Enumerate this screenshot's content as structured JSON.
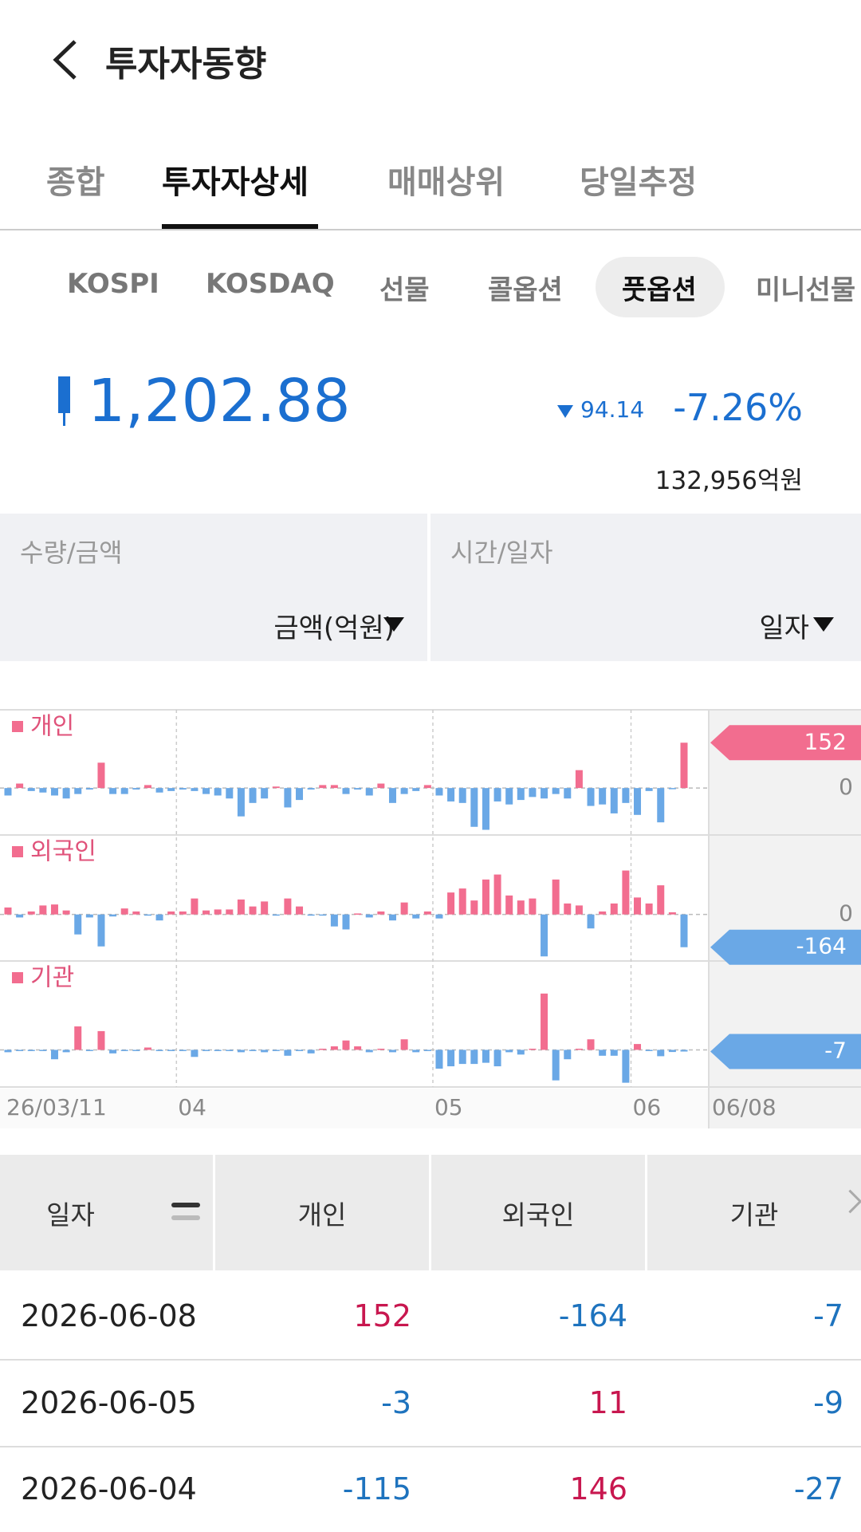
{
  "header": {
    "title": "투자자동향"
  },
  "tabs": [
    "종합",
    "투자자상세",
    "매매상위",
    "당일추정"
  ],
  "subtabs": [
    "KOSPI",
    "KOSDAQ",
    "선물",
    "콜옵션",
    "풋옵션",
    "미니선물"
  ],
  "quote": {
    "price": "1,202.88",
    "change": "94.14",
    "change_rate": "-7.26%",
    "amount": "132,956억원"
  },
  "filters": [
    {
      "label": "수량/금액",
      "value": "금액(억원)"
    },
    {
      "label": "시간/일자",
      "value": "일자"
    }
  ],
  "chart_data": {
    "type": "bar",
    "positive_color": "#f26d8f",
    "negative_color": "#6aa8e6",
    "categories": [
      "26/03/11",
      null,
      null,
      null,
      null,
      null,
      null,
      null,
      null,
      null,
      null,
      null,
      null,
      null,
      null,
      "04",
      null,
      null,
      null,
      null,
      null,
      null,
      null,
      null,
      null,
      null,
      null,
      null,
      null,
      null,
      null,
      null,
      null,
      null,
      null,
      null,
      null,
      "05",
      null,
      null,
      null,
      null,
      null,
      null,
      null,
      null,
      null,
      null,
      null,
      null,
      null,
      null,
      null,
      null,
      "06",
      null,
      null,
      null,
      "06/08"
    ],
    "series": [
      {
        "name": "개인",
        "ylim": [
          -152,
          257
        ],
        "yticks": [
          0
        ],
        "values": [
          -25,
          15,
          -10,
          -15,
          -25,
          -35,
          -20,
          -5,
          85,
          -20,
          -20,
          -5,
          10,
          -15,
          -10,
          -5,
          -10,
          -20,
          -25,
          -35,
          -95,
          -50,
          -35,
          5,
          -65,
          -40,
          -5,
          10,
          10,
          -20,
          -5,
          -25,
          15,
          -50,
          -20,
          -10,
          10,
          -25,
          -45,
          -50,
          -130,
          -140,
          -45,
          -55,
          -40,
          -30,
          -35,
          -20,
          -35,
          60,
          -60,
          -55,
          -85,
          -50,
          -90,
          -10,
          -115,
          -3,
          152
        ]
      },
      {
        "name": "외국인",
        "ylim": [
          -221,
          390
        ],
        "yticks": [
          0
        ],
        "values": [
          35,
          -15,
          15,
          45,
          50,
          20,
          -100,
          -15,
          -160,
          -10,
          30,
          15,
          -5,
          -30,
          15,
          15,
          80,
          20,
          25,
          25,
          75,
          40,
          65,
          -5,
          80,
          40,
          -5,
          -5,
          -60,
          -75,
          5,
          -15,
          15,
          -30,
          60,
          -20,
          15,
          -20,
          110,
          130,
          70,
          175,
          200,
          95,
          70,
          80,
          -210,
          175,
          55,
          45,
          -70,
          15,
          55,
          220,
          85,
          55,
          146,
          11,
          -164
        ]
      },
      {
        "name": "기관",
        "ylim": [
          -148,
          372
        ],
        "values": [
          -10,
          -5,
          -5,
          -5,
          -40,
          -10,
          100,
          -5,
          80,
          -15,
          -5,
          -5,
          10,
          -5,
          -5,
          -5,
          -30,
          -5,
          -5,
          -5,
          -10,
          -5,
          -10,
          -5,
          -25,
          -5,
          -15,
          5,
          15,
          40,
          15,
          -10,
          5,
          -10,
          45,
          -10,
          -5,
          -80,
          -70,
          -60,
          -60,
          -55,
          -70,
          -10,
          -20,
          5,
          240,
          -130,
          -40,
          5,
          45,
          -25,
          -25,
          -140,
          25,
          -5,
          -27,
          -9,
          -7
        ]
      }
    ]
  },
  "table": {
    "columns": [
      "일자",
      "개인",
      "외국인",
      "기관"
    ],
    "rows": [
      [
        "2026-06-08",
        152,
        -164,
        -7
      ],
      [
        "2026-06-05",
        -3,
        11,
        -9
      ],
      [
        "2026-06-04",
        -115,
        146,
        -27
      ]
    ]
  }
}
